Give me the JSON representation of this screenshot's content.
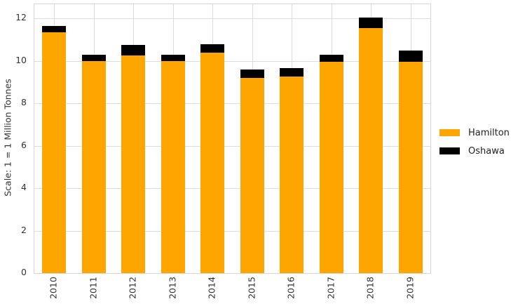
{
  "chart_data": {
    "type": "bar",
    "stacked": true,
    "title": "",
    "xlabel": "",
    "ylabel": "Scale: 1 = 1 Million Tonnes",
    "categories": [
      "2010",
      "2011",
      "2012",
      "2013",
      "2014",
      "2015",
      "2016",
      "2017",
      "2018",
      "2019"
    ],
    "series": [
      {
        "name": "Hamilton",
        "color": "#FFA500",
        "values": [
          11.35,
          10.0,
          10.25,
          10.0,
          10.4,
          9.2,
          9.25,
          9.95,
          11.55,
          9.95
        ]
      },
      {
        "name": "Oshawa",
        "color": "#000000",
        "values": [
          0.3,
          0.3,
          0.5,
          0.3,
          0.4,
          0.4,
          0.4,
          0.35,
          0.5,
          0.55
        ]
      }
    ],
    "yticks": [
      0,
      2,
      4,
      6,
      8,
      10,
      12
    ],
    "ylim": [
      0,
      12.67
    ],
    "grid": true,
    "legend_position": "right",
    "xtick_rotation": 90,
    "colors": {
      "grid": "#dcdcdc",
      "axis_border": "#d6d6d6",
      "text": "#333333",
      "background": "#ffffff"
    }
  }
}
